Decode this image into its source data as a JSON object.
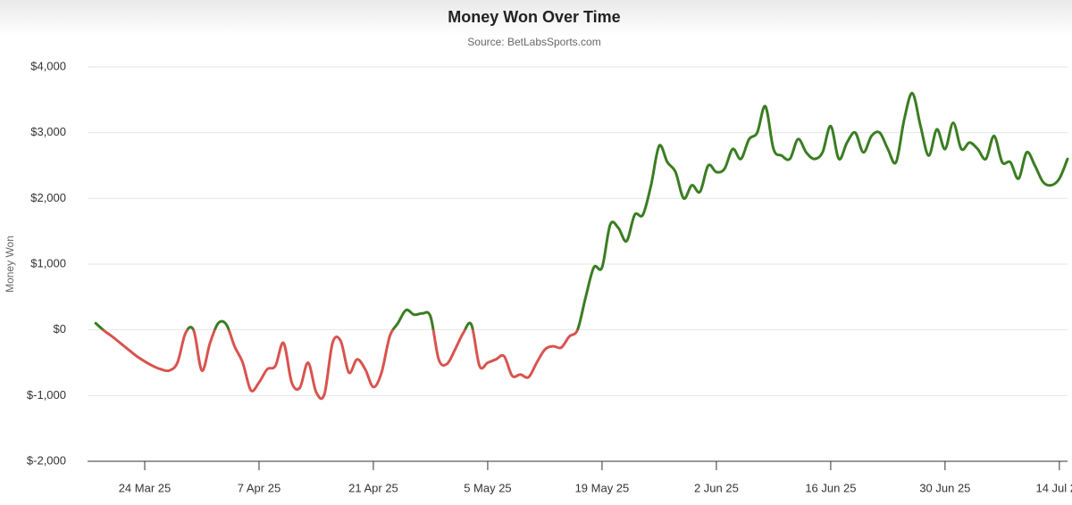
{
  "chart_data": {
    "type": "line",
    "title": "Money Won Over Time",
    "subtitle": "Source: BetLabsSports.com",
    "y_label": "Money Won",
    "positive_color": "#3a7d22",
    "negative_color": "#d9534f",
    "grid": true,
    "ylim": [
      -2000,
      4000
    ],
    "yticks": [
      {
        "value": -2000,
        "label": "$-2,000"
      },
      {
        "value": -1000,
        "label": "$-1,000"
      },
      {
        "value": 0,
        "label": "$0"
      },
      {
        "value": 1000,
        "label": "$1,000"
      },
      {
        "value": 2000,
        "label": "$2,000"
      },
      {
        "value": 3000,
        "label": "$3,000"
      },
      {
        "value": 4000,
        "label": "$4,000"
      }
    ],
    "xlim": [
      "2025-03-17",
      "2025-07-15"
    ],
    "xticks": [
      {
        "value": "2025-03-24",
        "label": "24 Mar 25"
      },
      {
        "value": "2025-04-07",
        "label": "7 Apr 25"
      },
      {
        "value": "2025-04-21",
        "label": "21 Apr 25"
      },
      {
        "value": "2025-05-05",
        "label": "5 May 25"
      },
      {
        "value": "2025-05-19",
        "label": "19 May 25"
      },
      {
        "value": "2025-06-02",
        "label": "2 Jun 25"
      },
      {
        "value": "2025-06-16",
        "label": "16 Jun 25"
      },
      {
        "value": "2025-06-30",
        "label": "30 Jun 25"
      },
      {
        "value": "2025-07-14",
        "label": "14 Jul 25"
      }
    ],
    "x": [
      "2025-03-18",
      "2025-03-19",
      "2025-03-20",
      "2025-03-21",
      "2025-03-22",
      "2025-03-23",
      "2025-03-24",
      "2025-03-25",
      "2025-03-26",
      "2025-03-27",
      "2025-03-28",
      "2025-03-29",
      "2025-03-30",
      "2025-03-31",
      "2025-04-01",
      "2025-04-02",
      "2025-04-03",
      "2025-04-04",
      "2025-04-05",
      "2025-04-06",
      "2025-04-07",
      "2025-04-08",
      "2025-04-09",
      "2025-04-10",
      "2025-04-11",
      "2025-04-12",
      "2025-04-13",
      "2025-04-14",
      "2025-04-15",
      "2025-04-16",
      "2025-04-17",
      "2025-04-18",
      "2025-04-19",
      "2025-04-20",
      "2025-04-21",
      "2025-04-22",
      "2025-04-23",
      "2025-04-24",
      "2025-04-25",
      "2025-04-26",
      "2025-04-27",
      "2025-04-28",
      "2025-04-29",
      "2025-04-30",
      "2025-05-01",
      "2025-05-02",
      "2025-05-03",
      "2025-05-04",
      "2025-05-05",
      "2025-05-06",
      "2025-05-07",
      "2025-05-08",
      "2025-05-09",
      "2025-05-10",
      "2025-05-11",
      "2025-05-12",
      "2025-05-13",
      "2025-05-14",
      "2025-05-15",
      "2025-05-16",
      "2025-05-17",
      "2025-05-18",
      "2025-05-19",
      "2025-05-20",
      "2025-05-21",
      "2025-05-22",
      "2025-05-23",
      "2025-05-24",
      "2025-05-25",
      "2025-05-26",
      "2025-05-27",
      "2025-05-28",
      "2025-05-29",
      "2025-05-30",
      "2025-05-31",
      "2025-06-01",
      "2025-06-02",
      "2025-06-03",
      "2025-06-04",
      "2025-06-05",
      "2025-06-06",
      "2025-06-07",
      "2025-06-08",
      "2025-06-09",
      "2025-06-10",
      "2025-06-11",
      "2025-06-12",
      "2025-06-13",
      "2025-06-14",
      "2025-06-15",
      "2025-06-16",
      "2025-06-17",
      "2025-06-18",
      "2025-06-19",
      "2025-06-20",
      "2025-06-21",
      "2025-06-22",
      "2025-06-23",
      "2025-06-24",
      "2025-06-25",
      "2025-06-26",
      "2025-06-27",
      "2025-06-28",
      "2025-06-29",
      "2025-06-30",
      "2025-07-01",
      "2025-07-02",
      "2025-07-03",
      "2025-07-04",
      "2025-07-05",
      "2025-07-06",
      "2025-07-07",
      "2025-07-08",
      "2025-07-09",
      "2025-07-10",
      "2025-07-11",
      "2025-07-12",
      "2025-07-13",
      "2025-07-14",
      "2025-07-15"
    ],
    "series": [
      {
        "name": "Money Won",
        "values": [
          100,
          -10,
          -100,
          -200,
          -300,
          -400,
          -480,
          -550,
          -600,
          -620,
          -500,
          -50,
          -10,
          -620,
          -200,
          100,
          80,
          -250,
          -500,
          -920,
          -800,
          -600,
          -550,
          -200,
          -800,
          -880,
          -500,
          -950,
          -980,
          -200,
          -170,
          -650,
          -450,
          -600,
          -870,
          -650,
          -100,
          100,
          300,
          230,
          250,
          200,
          -450,
          -520,
          -300,
          -50,
          80,
          -550,
          -500,
          -450,
          -400,
          -700,
          -680,
          -720,
          -500,
          -300,
          -250,
          -270,
          -100,
          0,
          500,
          950,
          950,
          1600,
          1550,
          1350,
          1750,
          1750,
          2200,
          2800,
          2550,
          2400,
          2000,
          2200,
          2100,
          2500,
          2400,
          2450,
          2750,
          2600,
          2900,
          3000,
          3400,
          2750,
          2650,
          2600,
          2900,
          2700,
          2600,
          2700,
          3100,
          2600,
          2850,
          3000,
          2700,
          2950,
          3000,
          2750,
          2550,
          3200,
          3600,
          3100,
          2650,
          3050,
          2750,
          3150,
          2750,
          2850,
          2750,
          2600,
          2950,
          2550,
          2550,
          2300,
          2700,
          2500,
          2250,
          2200,
          2300,
          2600
        ]
      }
    ]
  }
}
